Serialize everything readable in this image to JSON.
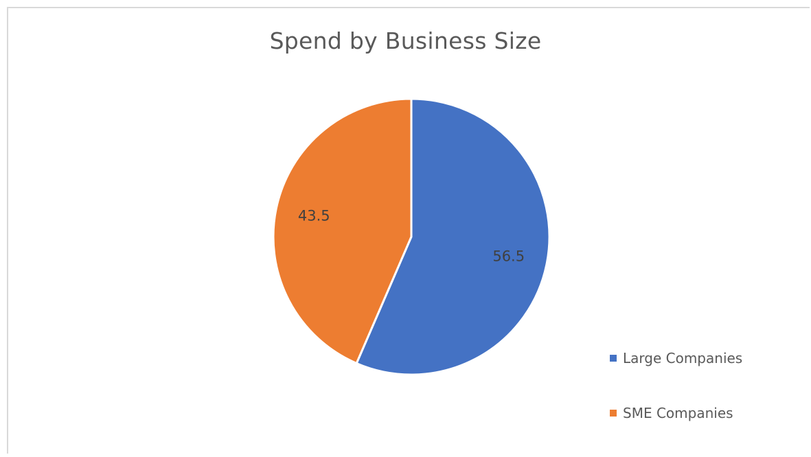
{
  "chart_data": {
    "type": "pie",
    "title": "Spend by Business Size",
    "categories": [
      "Large Companies",
      "SME Companies"
    ],
    "values": [
      56.5,
      43.5
    ],
    "colors": [
      "#4472c4",
      "#ed7d31"
    ],
    "data_labels": [
      "56.5",
      "43.5"
    ],
    "legend_placement": "bottom-right",
    "start_angle": "12 o'clock",
    "direction": "clockwise"
  }
}
